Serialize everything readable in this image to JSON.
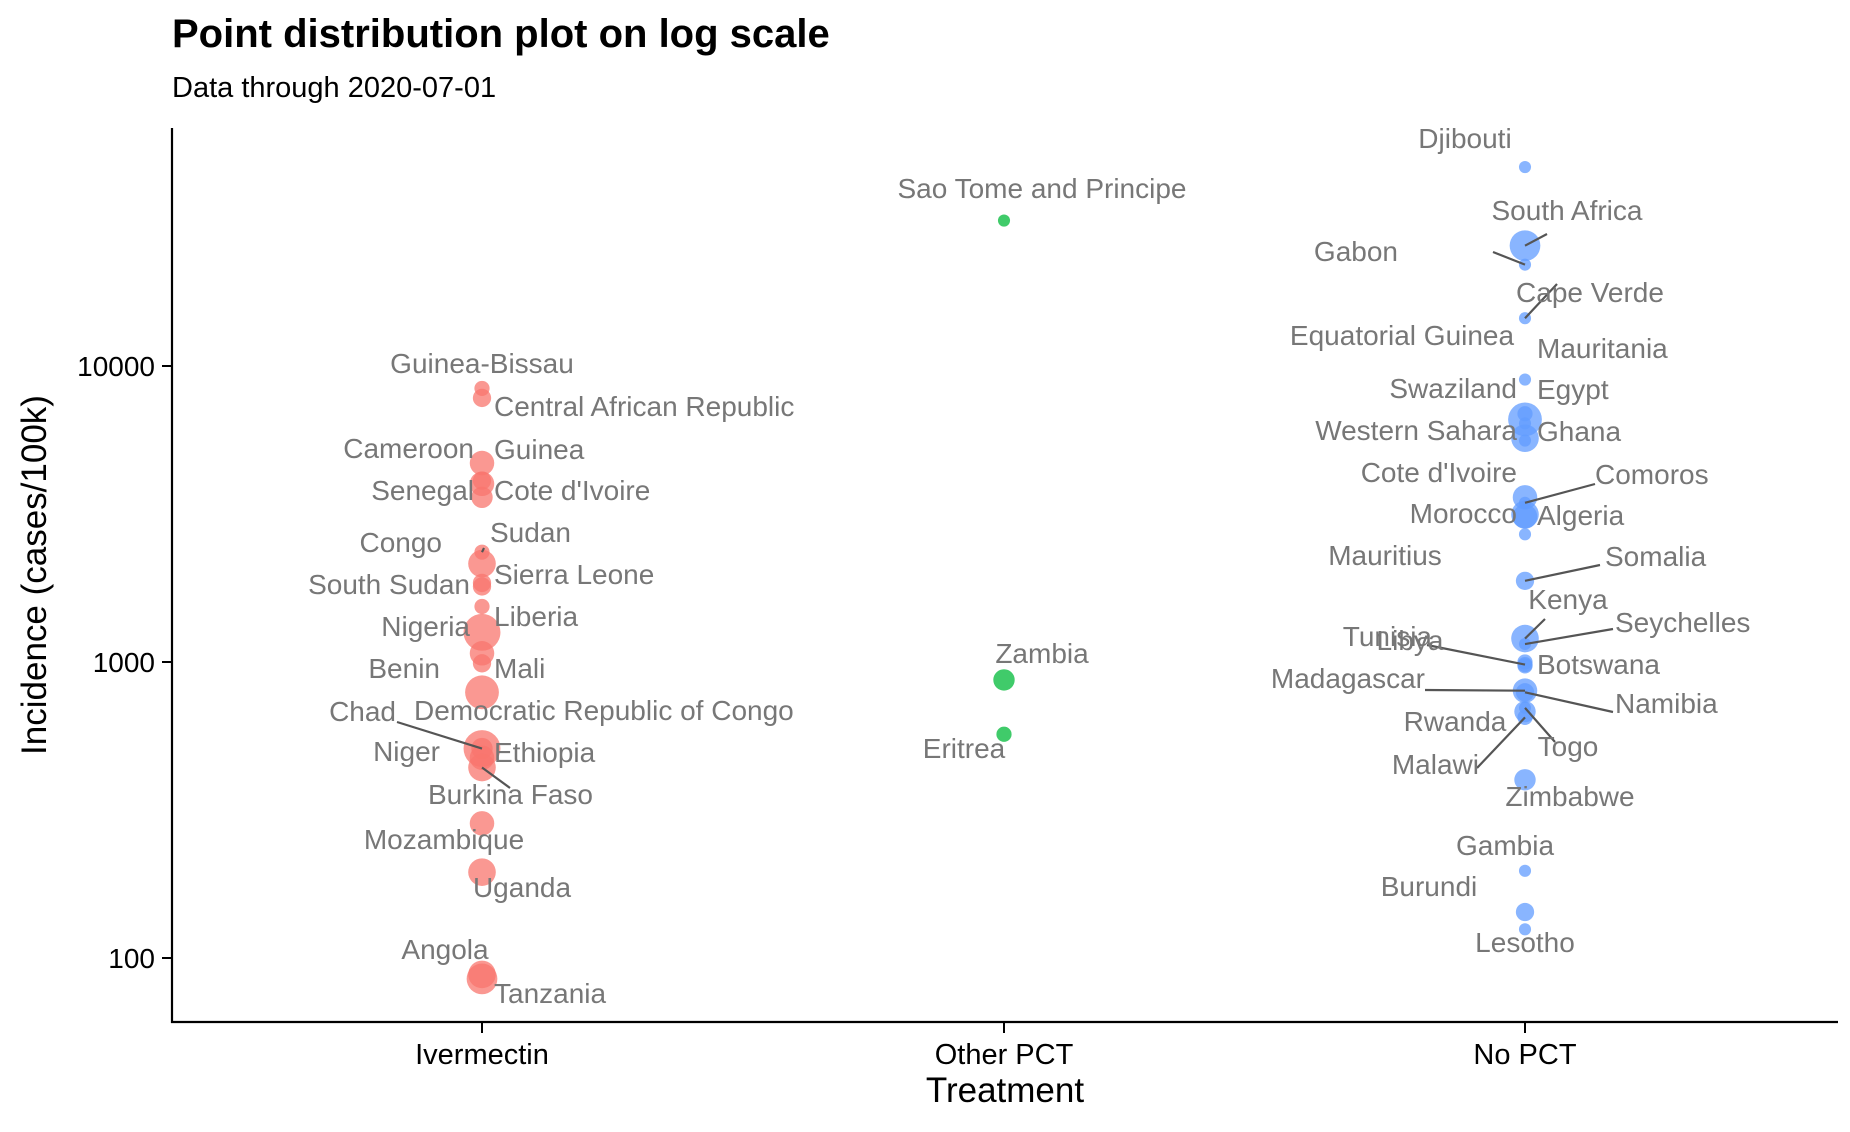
{
  "chart_data": {
    "type": "scatter",
    "title": "Point distribution plot on log scale",
    "subtitle": "Data through 2020-07-01",
    "xlabel": "Treatment",
    "ylabel": "Incidence (cases/100k)",
    "y_scale": "log10",
    "ylim": [
      62,
      65000
    ],
    "y_ticks": [
      100,
      1000,
      10000
    ],
    "y_tick_labels": [
      "100",
      "1000",
      "10000"
    ],
    "categories": [
      "Ivermectin",
      "Other PCT",
      "No PCT"
    ],
    "legend": "none",
    "grid": false,
    "colors": {
      "Ivermectin": "#F8766D",
      "Other PCT": "#00BA38",
      "No PCT": "#619CFF"
    },
    "series": [
      {
        "category": "Ivermectin",
        "points": [
          {
            "label": "Guinea-Bissau",
            "y": 8400,
            "size": 2
          },
          {
            "label": "Central African Republic",
            "y": 7800,
            "size": 3
          },
          {
            "label": "Cameroon",
            "y": 4700,
            "size": 5
          },
          {
            "label": "Guinea",
            "y": 4100,
            "size": 3
          },
          {
            "label": "Senegal",
            "y": 3600,
            "size": 4
          },
          {
            "label": "Cote d'Ivoire",
            "y": 4000,
            "size": 5
          },
          {
            "label": "Congo",
            "y": 2350,
            "size": 2
          },
          {
            "label": "Sudan",
            "y": 2150,
            "size": 6
          },
          {
            "label": "South Sudan",
            "y": 1800,
            "size": 3
          },
          {
            "label": "Sierra Leone",
            "y": 1850,
            "size": 3
          },
          {
            "label": "Nigeria",
            "y": 1260,
            "size": 9
          },
          {
            "label": "Liberia",
            "y": 1540,
            "size": 2
          },
          {
            "label": "Benin",
            "y": 990,
            "size": 3
          },
          {
            "label": "Mali",
            "y": 1070,
            "size": 5
          },
          {
            "label": "Democratic Republic of Congo",
            "y": 790,
            "size": 8
          },
          {
            "label": "Chad",
            "y": 510,
            "size": 4
          },
          {
            "label": "Ethiopia",
            "y": 510,
            "size": 9
          },
          {
            "label": "Niger",
            "y": 475,
            "size": 5
          },
          {
            "label": "Burkina Faso",
            "y": 440,
            "size": 6
          },
          {
            "label": "Mozambique",
            "y": 285,
            "size": 5
          },
          {
            "label": "Uganda",
            "y": 195,
            "size": 6
          },
          {
            "label": "Angola",
            "y": 88,
            "size": 6
          },
          {
            "label": "Tanzania",
            "y": 85,
            "size": 7
          }
        ]
      },
      {
        "category": "Other PCT",
        "points": [
          {
            "label": "Sao Tome and Principe",
            "y": 31000,
            "size": 1
          },
          {
            "label": "Zambia",
            "y": 870,
            "size": 4
          },
          {
            "label": "Eritrea",
            "y": 570,
            "size": 2
          }
        ]
      },
      {
        "category": "No PCT",
        "points": [
          {
            "label": "Djibouti",
            "y": 47000,
            "size": 1
          },
          {
            "label": "South Africa",
            "y": 25500,
            "size": 7
          },
          {
            "label": "Gabon",
            "y": 22000,
            "size": 1
          },
          {
            "label": "Cape Verde",
            "y": 14500,
            "size": 1
          },
          {
            "label": "Equatorial Guinea",
            "y": 9000,
            "size": 1
          },
          {
            "label": "Mauritania",
            "y": 6900,
            "size": 2
          },
          {
            "label": "Egypt",
            "y": 6600,
            "size": 8
          },
          {
            "label": "Swaziland",
            "y": 6400,
            "size": 1
          },
          {
            "label": "Ghana",
            "y": 5700,
            "size": 6
          },
          {
            "label": "Western Sahara",
            "y": 5600,
            "size": 1
          },
          {
            "label": "Cote d'Ivoire",
            "y": 3600,
            "size": 5
          },
          {
            "label": "Comoros",
            "y": 3450,
            "size": 1
          },
          {
            "label": "Algeria",
            "y": 3150,
            "size": 6
          },
          {
            "label": "Morocco",
            "y": 3100,
            "size": 5
          },
          {
            "label": "Mauritius",
            "y": 2700,
            "size": 1
          },
          {
            "label": "Somalia",
            "y": 1880,
            "size": 3
          },
          {
            "label": "Kenya",
            "y": 1200,
            "size": 6
          },
          {
            "label": "Seychelles",
            "y": 1150,
            "size": 1
          },
          {
            "label": "Libya",
            "y": 1000,
            "size": 2
          },
          {
            "label": "Tunisia",
            "y": 980,
            "size": 2
          },
          {
            "label": "Botswana",
            "y": 970,
            "size": 2
          },
          {
            "label": "Madagascar",
            "y": 800,
            "size": 5
          },
          {
            "label": "Namibia",
            "y": 790,
            "size": 3
          },
          {
            "label": "Togo",
            "y": 700,
            "size": 1
          },
          {
            "label": "Rwanda",
            "y": 680,
            "size": 4
          },
          {
            "label": "Malawi",
            "y": 650,
            "size": 2
          },
          {
            "label": "Zimbabwe",
            "y": 400,
            "size": 4
          },
          {
            "label": "Gambia",
            "y": 197,
            "size": 1
          },
          {
            "label": "Burundi",
            "y": 143,
            "size": 3
          },
          {
            "label": "Lesotho",
            "y": 125,
            "size": 1
          }
        ]
      }
    ]
  }
}
